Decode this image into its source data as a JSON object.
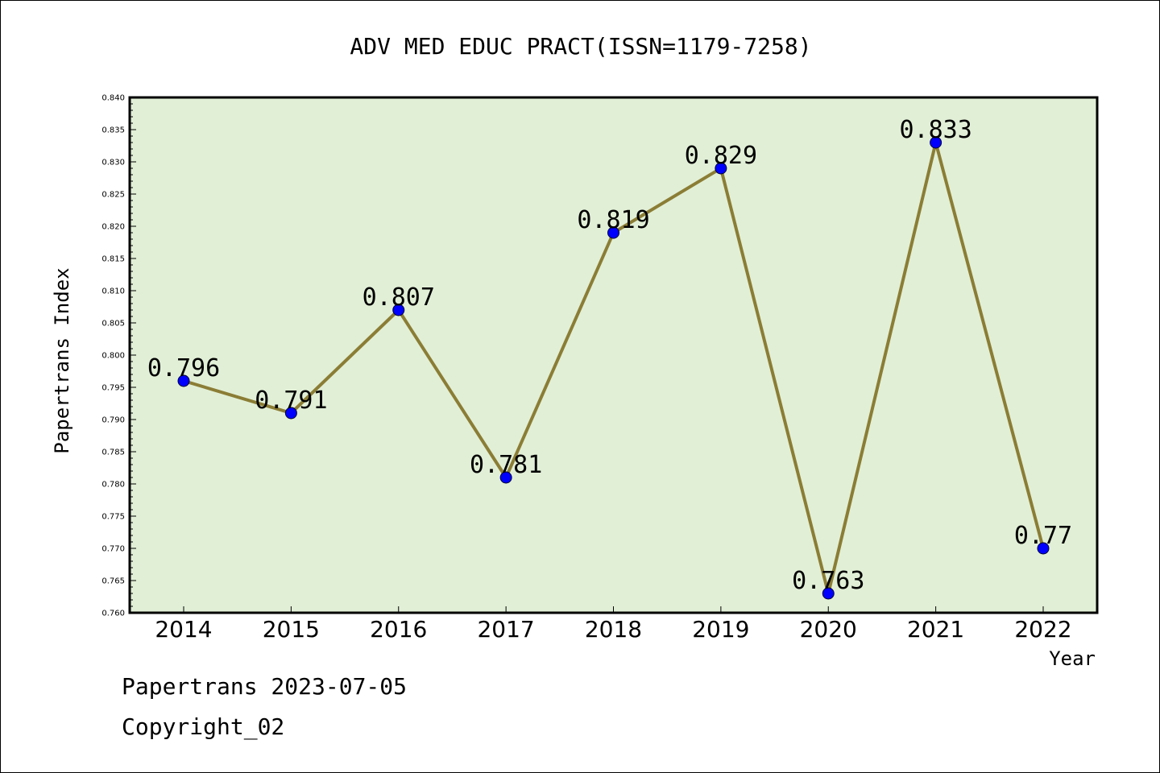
{
  "chart_data": {
    "type": "line",
    "title": "ADV MED EDUC PRACT(ISSN=1179-7258)",
    "xlabel": "Year",
    "ylabel": "Papertrans Index",
    "categories": [
      "2014",
      "2015",
      "2016",
      "2017",
      "2018",
      "2019",
      "2020",
      "2021",
      "2022"
    ],
    "series": [
      {
        "values": [
          0.796,
          0.791,
          0.807,
          0.781,
          0.819,
          0.829,
          0.763,
          0.833,
          0.77
        ],
        "labels": [
          "0.796",
          "0.791",
          "0.807",
          "0.781",
          "0.819",
          "0.829",
          "0.763",
          "0.833",
          "0.77"
        ],
        "line_color": "#8b7d35",
        "marker_color": "#0000ff"
      }
    ],
    "ylim": [
      0.76,
      0.84
    ],
    "yticks": [
      "0.760",
      "0.765",
      "0.770",
      "0.775",
      "0.780",
      "0.785",
      "0.790",
      "0.795",
      "0.800",
      "0.805",
      "0.810",
      "0.815",
      "0.820",
      "0.825",
      "0.830",
      "0.835",
      "0.840"
    ],
    "plot_background": "#e1efd6",
    "grid": false,
    "legend": "none"
  },
  "footer": {
    "line1": "Papertrans 2023-07-05",
    "line2": "Copyright_02"
  }
}
